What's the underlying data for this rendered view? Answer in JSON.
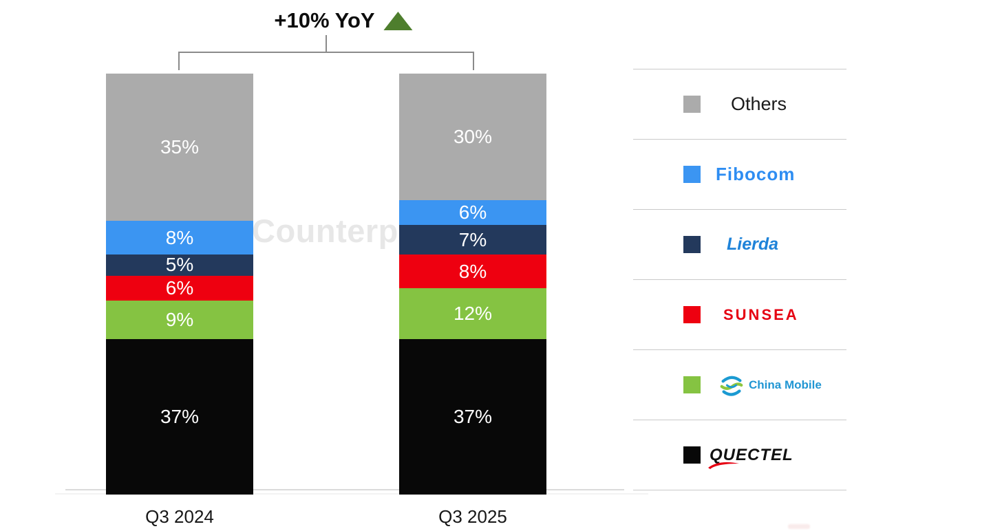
{
  "chart_data": {
    "type": "bar",
    "stacked": true,
    "title": "+10% YoY",
    "categories": [
      "Q3 2024",
      "Q3 2025"
    ],
    "series": [
      {
        "name": "Others",
        "color": "#ABABAB",
        "values": [
          35,
          30
        ]
      },
      {
        "name": "Fibocom",
        "color": "#3B95F2",
        "values": [
          8,
          6
        ]
      },
      {
        "name": "Lierda",
        "color": "#23395C",
        "values": [
          5,
          7
        ]
      },
      {
        "name": "SUNSEA",
        "color": "#EE0010",
        "values": [
          6,
          8
        ]
      },
      {
        "name": "China Mobile",
        "color": "#85C342",
        "values": [
          9,
          12
        ]
      },
      {
        "name": "Quectel",
        "color": "#080808",
        "values": [
          37,
          37
        ]
      }
    ],
    "value_suffix": "%",
    "ylim": [
      0,
      100
    ],
    "grid": false,
    "legend_position": "right",
    "label_color": "#ffffff"
  },
  "annotation": {
    "text": "+10% YoY",
    "arrow": "up-triangle",
    "arrow_color": "#4E7E2D"
  },
  "watermark": {
    "text": "Counterpoint"
  },
  "axis": {
    "label_1": "Q3 2024",
    "label_2": "Q3 2025"
  },
  "legend": {
    "items": [
      {
        "label": "Others",
        "logo_color": "#1A1A1A"
      },
      {
        "label": "Fibocom",
        "logo_color": "#2E8DF2"
      },
      {
        "label": "Lierda",
        "logo_color": "#1F83D9"
      },
      {
        "label": "SUNSEA",
        "logo_color": "#E60012"
      },
      {
        "label": "China Mobile",
        "logo_color": "#2196D3",
        "icon_stroke_main": "#1B9AD2",
        "icon_stroke_accent": "#8DC63F"
      },
      {
        "label": "QUECTEL",
        "logo_color": "#111111",
        "swoosh_color": "#E60012"
      }
    ]
  }
}
